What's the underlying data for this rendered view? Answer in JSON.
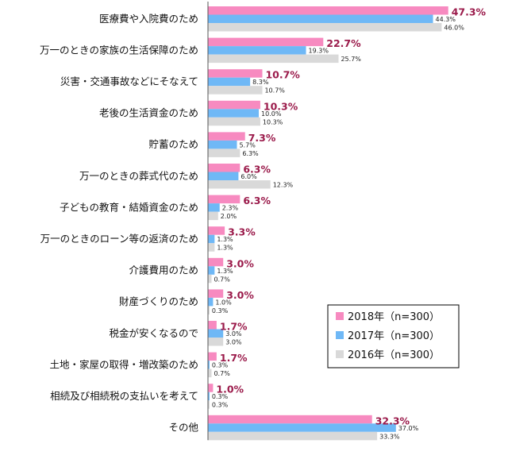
{
  "chart_data": {
    "type": "bar",
    "orientation": "horizontal",
    "categories": [
      "医療費や入院費のため",
      "万一のときの家族の生活保障のため",
      "災害・交通事故などにそなえて",
      "老後の生活資金のため",
      "貯蓄のため",
      "万一のときの葬式代のため",
      "子どもの教育・結婚資金のため",
      "万一のときのローン等の返済のため",
      "介護費用のため",
      "財産づくりのため",
      "税金が安くなるので",
      "土地・家屋の取得・増改築のため",
      "相続及び相続税の支払いを考えて",
      "その他"
    ],
    "series": [
      {
        "name": "2018年（n=300）",
        "color": "#f78ac0",
        "values": [
          47.3,
          22.7,
          10.7,
          10.3,
          7.3,
          6.3,
          6.3,
          3.3,
          3.0,
          3.0,
          1.7,
          1.7,
          1.0,
          32.3
        ],
        "labels": [
          "47.3%",
          "22.7%",
          "10.7%",
          "10.3%",
          "7.3%",
          "6.3%",
          "6.3%",
          "3.3%",
          "3.0%",
          "3.0%",
          "1.7%",
          "1.7%",
          "1.0%",
          "32.3%"
        ]
      },
      {
        "name": "2017年（n=300）",
        "color": "#6fb8f6",
        "values": [
          44.3,
          19.3,
          8.3,
          10.0,
          5.7,
          6.0,
          2.3,
          1.3,
          1.3,
          1.0,
          3.0,
          0.3,
          0.3,
          37.0
        ],
        "labels": [
          "44.3%",
          "19.3%",
          "8.3%",
          "10.0%",
          "5.7%",
          "6.0%",
          "2.3%",
          "1.3%",
          "1.3%",
          "1.0%",
          "3.0%",
          "0.3%",
          "0.3%",
          "37.0%"
        ]
      },
      {
        "name": "2016年（n=300）",
        "color": "#d9d9d9",
        "values": [
          46.0,
          25.7,
          10.7,
          10.3,
          6.3,
          12.3,
          2.0,
          1.3,
          0.7,
          0.3,
          3.0,
          0.7,
          0.3,
          33.3
        ],
        "labels": [
          "46.0%",
          "25.7%",
          "10.7%",
          "10.3%",
          "6.3%",
          "12.3%",
          "2.0%",
          "1.3%",
          "0.7%",
          "0.3%",
          "3.0%",
          "0.7%",
          "0.3%",
          "33.3%"
        ]
      }
    ],
    "highlight_label_color": "#9b1b4b",
    "xlim": [
      0,
      50
    ],
    "grid": false,
    "legend_position": "bottom-right"
  }
}
